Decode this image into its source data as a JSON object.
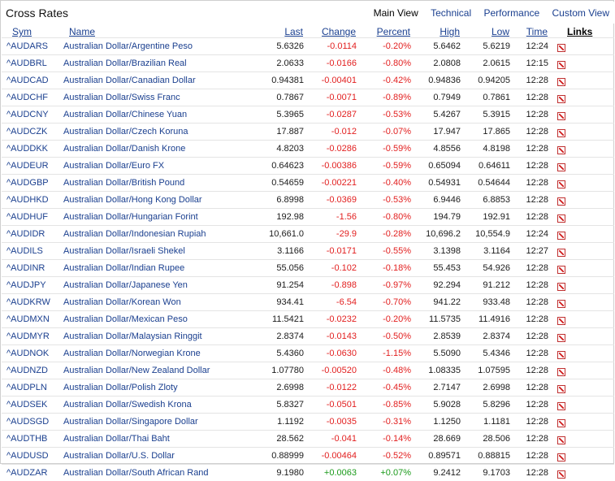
{
  "header": {
    "title": "Cross Rates",
    "views": [
      "Main View",
      "Technical",
      "Performance",
      "Custom View"
    ]
  },
  "columns": {
    "sym": "Sym",
    "name": "Name",
    "last": "Last",
    "change": "Change",
    "percent": "Percent",
    "high": "High",
    "low": "Low",
    "time": "Time",
    "links": "Links"
  },
  "rows": [
    {
      "sym": "^AUDARS",
      "name": "Australian Dollar/Argentine Peso",
      "last": "5.6326",
      "change": "-0.0114",
      "percent": "-0.20%",
      "high": "5.6462",
      "low": "5.6219",
      "time": "12:24"
    },
    {
      "sym": "^AUDBRL",
      "name": "Australian Dollar/Brazilian Real",
      "last": "2.0633",
      "change": "-0.0166",
      "percent": "-0.80%",
      "high": "2.0808",
      "low": "2.0615",
      "time": "12:15"
    },
    {
      "sym": "^AUDCAD",
      "name": "Australian Dollar/Canadian Dollar",
      "last": "0.94381",
      "change": "-0.00401",
      "percent": "-0.42%",
      "high": "0.94836",
      "low": "0.94205",
      "time": "12:28"
    },
    {
      "sym": "^AUDCHF",
      "name": "Australian Dollar/Swiss Franc",
      "last": "0.7867",
      "change": "-0.0071",
      "percent": "-0.89%",
      "high": "0.7949",
      "low": "0.7861",
      "time": "12:28"
    },
    {
      "sym": "^AUDCNY",
      "name": "Australian Dollar/Chinese Yuan",
      "last": "5.3965",
      "change": "-0.0287",
      "percent": "-0.53%",
      "high": "5.4267",
      "low": "5.3915",
      "time": "12:28"
    },
    {
      "sym": "^AUDCZK",
      "name": "Australian Dollar/Czech Koruna",
      "last": "17.887",
      "change": "-0.012",
      "percent": "-0.07%",
      "high": "17.947",
      "low": "17.865",
      "time": "12:28"
    },
    {
      "sym": "^AUDDKK",
      "name": "Australian Dollar/Danish Krone",
      "last": "4.8203",
      "change": "-0.0286",
      "percent": "-0.59%",
      "high": "4.8556",
      "low": "4.8198",
      "time": "12:28"
    },
    {
      "sym": "^AUDEUR",
      "name": "Australian Dollar/Euro FX",
      "last": "0.64623",
      "change": "-0.00386",
      "percent": "-0.59%",
      "high": "0.65094",
      "low": "0.64611",
      "time": "12:28"
    },
    {
      "sym": "^AUDGBP",
      "name": "Australian Dollar/British Pound",
      "last": "0.54659",
      "change": "-0.00221",
      "percent": "-0.40%",
      "high": "0.54931",
      "low": "0.54644",
      "time": "12:28"
    },
    {
      "sym": "^AUDHKD",
      "name": "Australian Dollar/Hong Kong Dollar",
      "last": "6.8998",
      "change": "-0.0369",
      "percent": "-0.53%",
      "high": "6.9446",
      "low": "6.8853",
      "time": "12:28"
    },
    {
      "sym": "^AUDHUF",
      "name": "Australian Dollar/Hungarian Forint",
      "last": "192.98",
      "change": "-1.56",
      "percent": "-0.80%",
      "high": "194.79",
      "low": "192.91",
      "time": "12:28"
    },
    {
      "sym": "^AUDIDR",
      "name": "Australian Dollar/Indonesian Rupiah",
      "last": "10,661.0",
      "change": "-29.9",
      "percent": "-0.28%",
      "high": "10,696.2",
      "low": "10,554.9",
      "time": "12:24"
    },
    {
      "sym": "^AUDILS",
      "name": "Australian Dollar/Israeli Shekel",
      "last": "3.1166",
      "change": "-0.0171",
      "percent": "-0.55%",
      "high": "3.1398",
      "low": "3.1164",
      "time": "12:27"
    },
    {
      "sym": "^AUDINR",
      "name": "Australian Dollar/Indian Rupee",
      "last": "55.056",
      "change": "-0.102",
      "percent": "-0.18%",
      "high": "55.453",
      "low": "54.926",
      "time": "12:28"
    },
    {
      "sym": "^AUDJPY",
      "name": "Australian Dollar/Japanese Yen",
      "last": "91.254",
      "change": "-0.898",
      "percent": "-0.97%",
      "high": "92.294",
      "low": "91.212",
      "time": "12:28"
    },
    {
      "sym": "^AUDKRW",
      "name": "Australian Dollar/Korean Won",
      "last": "934.41",
      "change": "-6.54",
      "percent": "-0.70%",
      "high": "941.22",
      "low": "933.48",
      "time": "12:28"
    },
    {
      "sym": "^AUDMXN",
      "name": "Australian Dollar/Mexican Peso",
      "last": "11.5421",
      "change": "-0.0232",
      "percent": "-0.20%",
      "high": "11.5735",
      "low": "11.4916",
      "time": "12:28"
    },
    {
      "sym": "^AUDMYR",
      "name": "Australian Dollar/Malaysian Ringgit",
      "last": "2.8374",
      "change": "-0.0143",
      "percent": "-0.50%",
      "high": "2.8539",
      "low": "2.8374",
      "time": "12:28"
    },
    {
      "sym": "^AUDNOK",
      "name": "Australian Dollar/Norwegian Krone",
      "last": "5.4360",
      "change": "-0.0630",
      "percent": "-1.15%",
      "high": "5.5090",
      "low": "5.4346",
      "time": "12:28"
    },
    {
      "sym": "^AUDNZD",
      "name": "Australian Dollar/New Zealand Dollar",
      "last": "1.07780",
      "change": "-0.00520",
      "percent": "-0.48%",
      "high": "1.08335",
      "low": "1.07595",
      "time": "12:28"
    },
    {
      "sym": "^AUDPLN",
      "name": "Australian Dollar/Polish Zloty",
      "last": "2.6998",
      "change": "-0.0122",
      "percent": "-0.45%",
      "high": "2.7147",
      "low": "2.6998",
      "time": "12:28"
    },
    {
      "sym": "^AUDSEK",
      "name": "Australian Dollar/Swedish Krona",
      "last": "5.8327",
      "change": "-0.0501",
      "percent": "-0.85%",
      "high": "5.9028",
      "low": "5.8296",
      "time": "12:28"
    },
    {
      "sym": "^AUDSGD",
      "name": "Australian Dollar/Singapore Dollar",
      "last": "1.1192",
      "change": "-0.0035",
      "percent": "-0.31%",
      "high": "1.1250",
      "low": "1.1181",
      "time": "12:28"
    },
    {
      "sym": "^AUDTHB",
      "name": "Australian Dollar/Thai Baht",
      "last": "28.562",
      "change": "-0.041",
      "percent": "-0.14%",
      "high": "28.669",
      "low": "28.506",
      "time": "12:28"
    },
    {
      "sym": "^AUDUSD",
      "name": "Australian Dollar/U.S. Dollar",
      "last": "0.88999",
      "change": "-0.00464",
      "percent": "-0.52%",
      "high": "0.89571",
      "low": "0.88815",
      "time": "12:28"
    },
    {
      "sym": "^AUDZAR",
      "name": "Australian Dollar/South African Rand",
      "last": "9.1980",
      "change": "+0.0063",
      "percent": "+0.07%",
      "high": "9.2412",
      "low": "9.1703",
      "time": "12:28"
    }
  ],
  "colors": {
    "negative": "#e21f1f",
    "positive": "#1a9a1a",
    "link": "#1a3f8f"
  },
  "link_icons": [
    "quote-icon",
    "chart-icon",
    "technical-icon",
    "options-icon"
  ]
}
